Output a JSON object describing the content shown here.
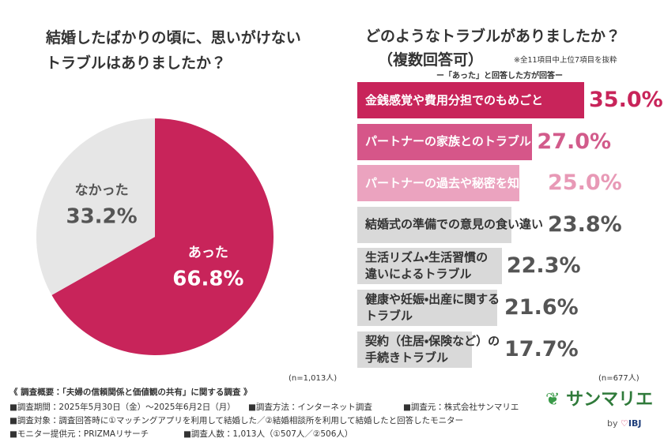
{
  "chart_data": [
    {
      "type": "pie",
      "title": [
        "結婚したばかりの頃に、思いがけない",
        "トラブルはありましたか？"
      ],
      "categories": [
        "あった",
        "なかった"
      ],
      "values": [
        66.8,
        33.2
      ],
      "value_labels": [
        "66.8%",
        "33.2%"
      ],
      "colors": [
        "#c8245a",
        "#e6e6e6"
      ],
      "label_colors": [
        "#ffffff",
        "#555555"
      ],
      "note": "(n=1,013人)"
    },
    {
      "type": "bar",
      "title": [
        "どのようなトラブルがありましたか？",
        "（複数回答可）"
      ],
      "note": "※全11項目中上位7項目を抜粋",
      "subtitle": "ー「あった」と回答した方が回答ー",
      "categories": [
        "金銭感覚や費用分担でのもめごと",
        "パートナーの家族とのトラブル",
        "パートナーの過去や秘密を知った",
        "結婚式の準備での意見の食い違い",
        "生活リズム・生活習慣の\n違いによるトラブル",
        "健康や妊娠・出産に関する\nトラブル",
        "契約（住居・保険など）の\n手続きトラブル"
      ],
      "values": [
        35.0,
        27.0,
        25.0,
        23.8,
        22.3,
        21.6,
        17.7
      ],
      "value_labels": [
        "35.0%",
        "27.0%",
        "25.0%",
        "23.8%",
        "22.3%",
        "21.6%",
        "17.7%"
      ],
      "colors": [
        "#c8245a",
        "#d65689",
        "#eba3bf",
        "#d9d9d9",
        "#d9d9d9",
        "#d9d9d9",
        "#d9d9d9"
      ],
      "text_colors": [
        "#ffffff",
        "#ffffff",
        "#ffffff",
        "#333333",
        "#333333",
        "#333333",
        "#333333"
      ],
      "label_colors": [
        "#c8245a",
        "#d25b8b",
        "#e899b6",
        "#555555",
        "#555555",
        "#555555",
        "#555555"
      ],
      "footnote": "(n=677人)"
    }
  ],
  "footer": {
    "heading": "《 調査概要：「夫婦の信頼関係と価値観の共有」に関する調査 》",
    "lines": [
      [
        "■調査期間：2025年5月30日（金）〜2025年6月2日（月）",
        "■調査方法：インターネット調査",
        "■調査元：株式会社サンマリエ"
      ],
      [
        "■調査対象：調査回答時に①マッチングアプリを利用して結婚した／②結婚相談所を利用して結婚したと回答したモニター"
      ],
      [
        "■モニター提供元：PRIZMAリサーチ",
        "■調査人数：1,013人（①507人／②506人）"
      ]
    ],
    "logo": "サンマリエ",
    "by": "by",
    "brand": "IBJ"
  }
}
